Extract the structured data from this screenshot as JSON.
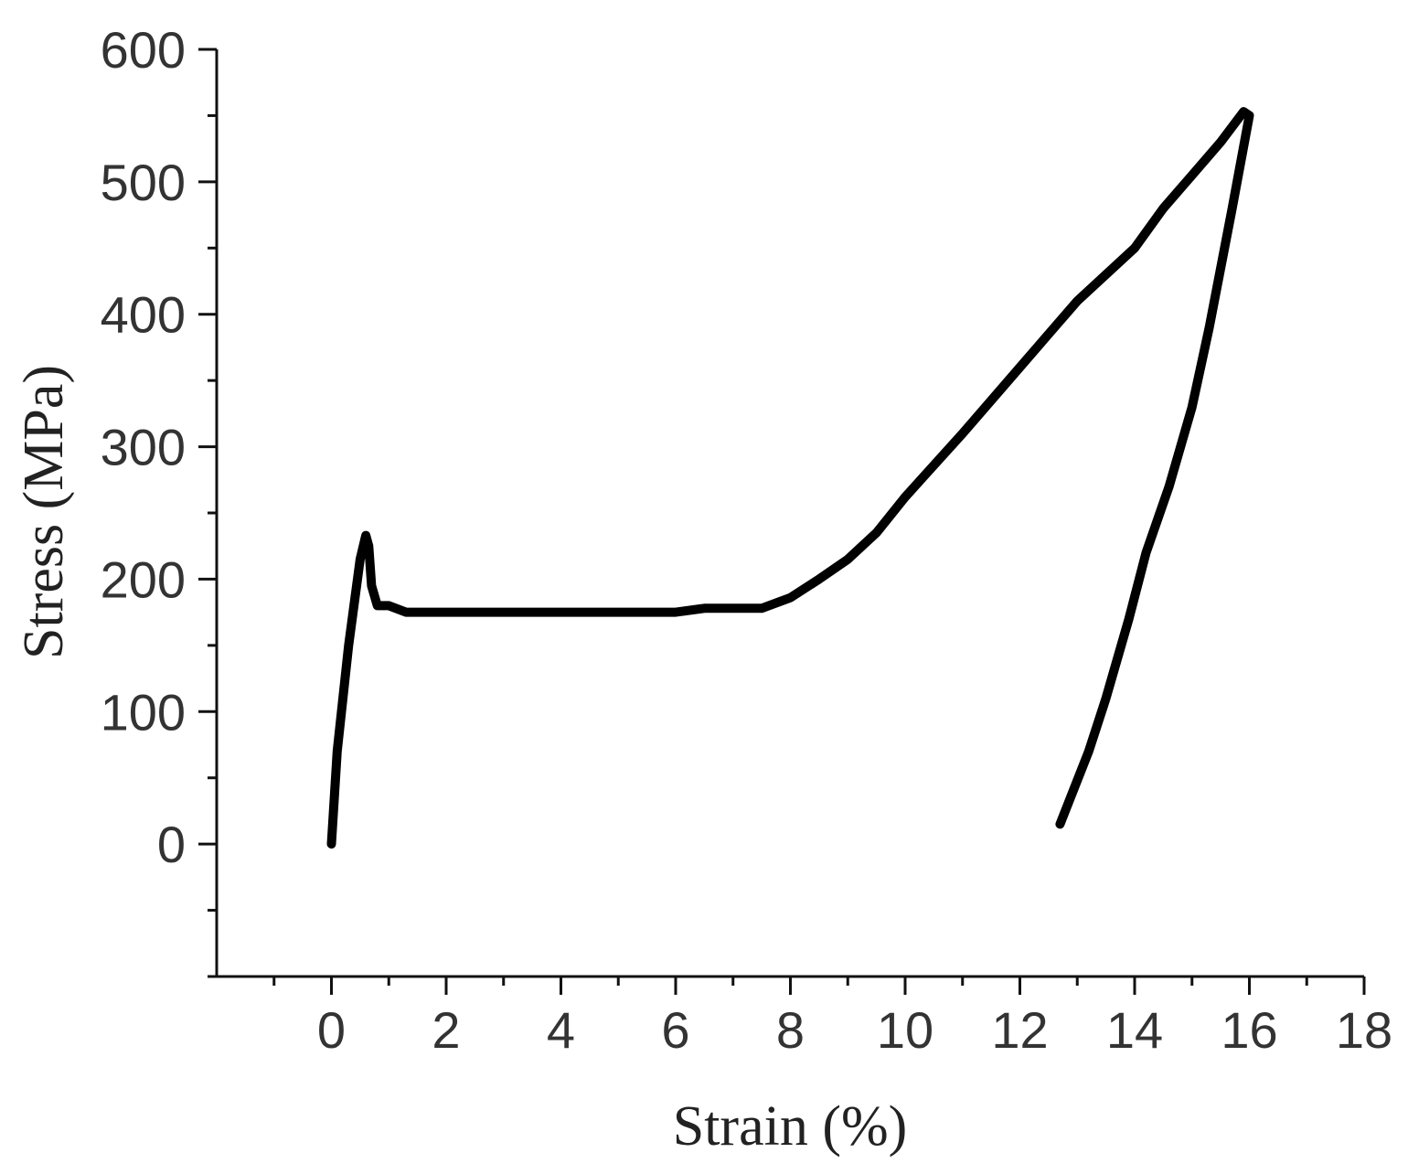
{
  "chart_data": {
    "type": "line",
    "xlabel": "Strain (%)",
    "ylabel": "Stress (MPa)",
    "xlim": [
      -2,
      18
    ],
    "ylim": [
      -100,
      600
    ],
    "xticks": [
      0,
      2,
      4,
      6,
      8,
      10,
      12,
      14,
      16,
      18
    ],
    "xtick_labels": [
      "0",
      "2",
      "4",
      "6",
      "8",
      "10",
      "12",
      "14",
      "16",
      "18"
    ],
    "yticks": [
      0,
      100,
      200,
      300,
      400,
      500,
      600
    ],
    "ytick_labels": [
      "0",
      "100",
      "200",
      "300",
      "400",
      "500",
      "600"
    ],
    "grid": false,
    "legend": "none",
    "line_color": "#000000",
    "series": [
      {
        "x": [
          0.0,
          0.1,
          0.3,
          0.5,
          0.6,
          0.65,
          0.7,
          0.8,
          1.0,
          1.3,
          2.0,
          4.0,
          6.0,
          6.5,
          7.0,
          7.5,
          8.0,
          8.5,
          9.0,
          9.5,
          10.0,
          11.0,
          12.0,
          12.5,
          13.0,
          14.0,
          14.5,
          15.0,
          15.5,
          15.9,
          16.0,
          15.7,
          15.3,
          15.0,
          14.6,
          14.2,
          13.9,
          13.5,
          13.2,
          12.7
        ],
        "y": [
          0,
          70,
          150,
          215,
          233,
          225,
          195,
          180,
          180,
          175,
          175,
          175,
          175,
          178,
          178,
          178,
          186,
          200,
          215,
          235,
          262,
          310,
          360,
          385,
          410,
          450,
          480,
          505,
          530,
          553,
          550,
          480,
          390,
          330,
          270,
          220,
          170,
          110,
          70,
          15
        ]
      }
    ]
  }
}
